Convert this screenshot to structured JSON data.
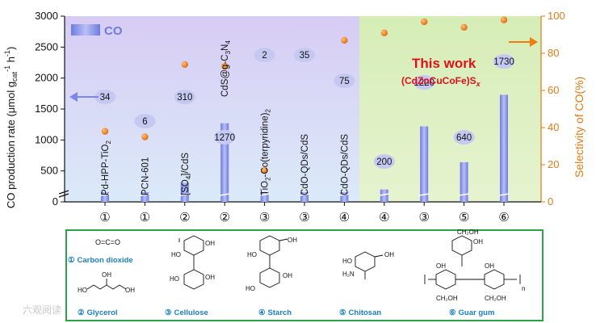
{
  "chart_data": {
    "type": "bar",
    "categories": [
      "Pd-HPP-TiO2",
      "PCN-601",
      "[SO4]/CdS",
      "CdS@g-C3N4",
      "TiO2-Co(terpyridine)2",
      "CdO-QDs/CdS",
      "CdO-QDs/CdS",
      "",
      "",
      "",
      ""
    ],
    "category_markers": [
      "①",
      "①",
      "②",
      "②",
      "③",
      "③",
      "④",
      "④",
      "③",
      "⑤",
      "⑥"
    ],
    "series": [
      {
        "name": "CO",
        "type": "bar",
        "axis": "left",
        "values": [
          34,
          6,
          310,
          1270,
          2,
          35,
          75,
          200,
          1220,
          640,
          1730
        ],
        "color": "#7b86e8"
      },
      {
        "name": "Selectivity",
        "type": "scatter",
        "axis": "right",
        "values": [
          38,
          35,
          74,
          73,
          17,
          78,
          87,
          91,
          97,
          94,
          98
        ],
        "color": "#f07c10"
      }
    ],
    "ylabel": "CO production rate  (μmol g",
    "ylabel_sub": "cat",
    "ylabel_sup": "-1",
    "ylabel_tail": " h",
    "ylabel_sup2": "-1",
    "ylabel_close": ")",
    "y2label": "Selectivity of CO(%)",
    "ylim": [
      0,
      3000
    ],
    "y2lim": [
      0,
      100
    ],
    "yticks": [
      "0",
      "500",
      "1000",
      "1500",
      "2000",
      "2500",
      "3000"
    ],
    "y2ticks": [
      "0",
      "20",
      "40",
      "60",
      "80",
      "100"
    ],
    "legend": "CO",
    "annotation_title": "This work",
    "annotation_sub": "(CdZnCuCoFe)S",
    "annotation_sub_x": "x",
    "colors": {
      "left_panel": "#d9d2f5",
      "right_panel": "#d9f0b8",
      "bar": "#7b86e8",
      "dot": "#f07c10",
      "axis_right": "#e07a14",
      "highlight": "#e0101c",
      "legend_border": "#2aa24a"
    }
  },
  "legend_box": {
    "items": [
      {
        "marker": "①",
        "label": "Carbon dioxide",
        "formula": "O=C=O"
      },
      {
        "marker": "②",
        "label": "Glycerol"
      },
      {
        "marker": "③",
        "label": "Cellulose"
      },
      {
        "marker": "④",
        "label": "Starch"
      },
      {
        "marker": "⑤",
        "label": "Chitosan"
      },
      {
        "marker": "⑥",
        "label": "Guar gum"
      }
    ]
  },
  "watermark": "六观阅读"
}
